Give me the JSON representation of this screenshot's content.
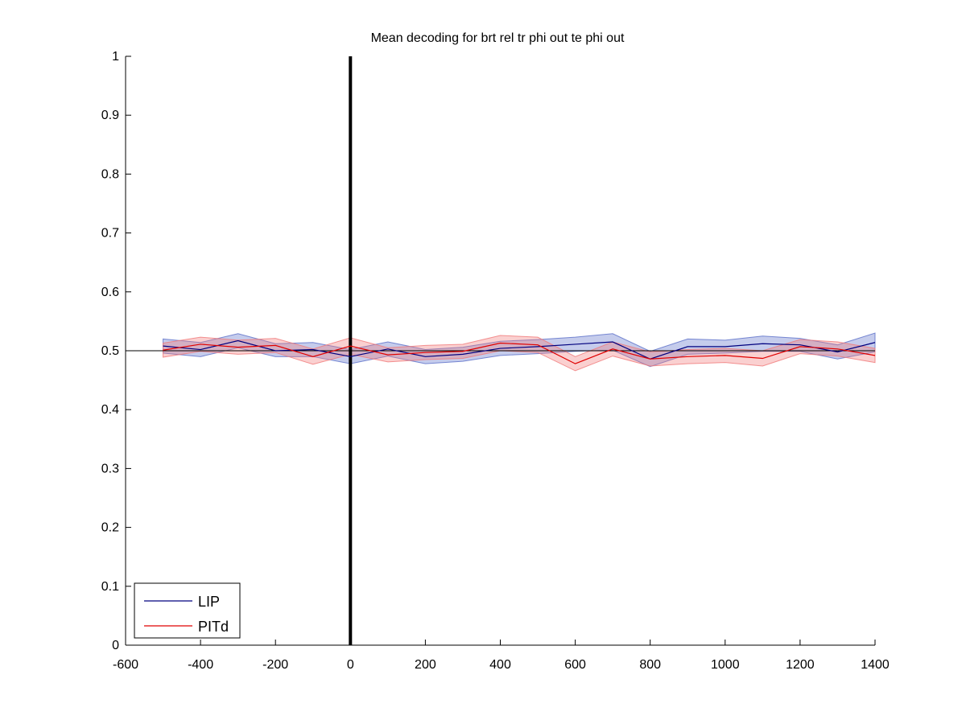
{
  "chart_data": {
    "type": "line",
    "title": "Mean decoding for brt rel tr phi out te phi out",
    "xlabel": "",
    "ylabel": "",
    "xlim": [
      -600,
      1400
    ],
    "ylim": [
      0,
      1
    ],
    "xticks": [
      -600,
      -400,
      -200,
      0,
      200,
      400,
      600,
      800,
      1000,
      1200,
      1400
    ],
    "xtick_labels": [
      "-600",
      "-400",
      "-200",
      "0",
      "200",
      "400",
      "600",
      "800",
      "1000",
      "1200",
      "1400"
    ],
    "yticks": [
      0,
      0.1,
      0.2,
      0.3,
      0.4,
      0.5,
      0.6,
      0.7,
      0.8,
      0.9,
      1
    ],
    "ytick_labels": [
      "0",
      "0.1",
      "0.2",
      "0.3",
      "0.4",
      "0.5",
      "0.6",
      "0.7",
      "0.8",
      "0.9",
      "1"
    ],
    "grid": false,
    "legend_position": "bottom-left",
    "reference_lines": [
      {
        "orientation": "horizontal",
        "value": 0.5,
        "color": "#000000"
      },
      {
        "orientation": "vertical",
        "value": 0,
        "color": "#000000"
      }
    ],
    "x": [
      -500,
      -400,
      -300,
      -200,
      -100,
      0,
      100,
      200,
      300,
      400,
      500,
      600,
      700,
      800,
      900,
      1000,
      1100,
      1200,
      1300,
      1400
    ],
    "series": [
      {
        "name": "LIP",
        "color": "#00007f",
        "band_color": "#5a6ec8",
        "values": [
          0.508,
          0.502,
          0.517,
          0.5,
          0.502,
          0.49,
          0.503,
          0.49,
          0.494,
          0.504,
          0.507,
          0.511,
          0.515,
          0.486,
          0.507,
          0.507,
          0.512,
          0.51,
          0.498,
          0.514
        ],
        "upper": [
          0.52,
          0.514,
          0.529,
          0.512,
          0.514,
          0.502,
          0.515,
          0.502,
          0.506,
          0.516,
          0.519,
          0.523,
          0.529,
          0.499,
          0.52,
          0.518,
          0.525,
          0.521,
          0.51,
          0.53
        ],
        "lower": [
          0.496,
          0.49,
          0.505,
          0.49,
          0.49,
          0.478,
          0.491,
          0.478,
          0.482,
          0.492,
          0.495,
          0.499,
          0.501,
          0.473,
          0.494,
          0.496,
          0.499,
          0.499,
          0.486,
          0.498
        ]
      },
      {
        "name": "PITd",
        "color": "#e00000",
        "band_color": "#f07878",
        "values": [
          0.501,
          0.511,
          0.506,
          0.509,
          0.49,
          0.508,
          0.493,
          0.497,
          0.499,
          0.513,
          0.51,
          0.478,
          0.503,
          0.486,
          0.49,
          0.492,
          0.487,
          0.507,
          0.503,
          0.492
        ],
        "upper": [
          0.513,
          0.523,
          0.518,
          0.521,
          0.503,
          0.522,
          0.505,
          0.509,
          0.511,
          0.526,
          0.523,
          0.49,
          0.515,
          0.498,
          0.502,
          0.504,
          0.5,
          0.519,
          0.515,
          0.504
        ],
        "lower": [
          0.489,
          0.499,
          0.494,
          0.497,
          0.477,
          0.494,
          0.481,
          0.485,
          0.487,
          0.5,
          0.497,
          0.466,
          0.491,
          0.474,
          0.478,
          0.48,
          0.474,
          0.495,
          0.491,
          0.48
        ]
      }
    ]
  }
}
